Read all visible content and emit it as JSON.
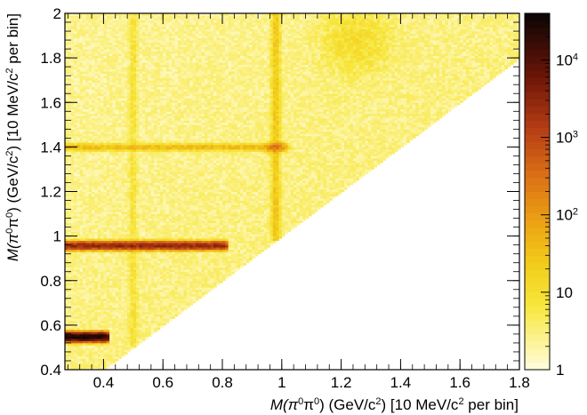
{
  "chart_data": {
    "type": "heatmap",
    "x_axis": {
      "range": [
        0.27,
        1.8
      ],
      "ticks": [
        0.4,
        0.6,
        0.8,
        1,
        1.2,
        1.4,
        1.6,
        1.8
      ],
      "tick_labels": [
        "0.4",
        "0.6",
        "0.8",
        "1",
        "1.2",
        "1.4",
        "1.6",
        "1.8"
      ],
      "label": {
        "base": "M(π",
        "sup1": "0",
        "mid1": "π",
        "sup2": "0",
        "mid2": ") (GeV/c",
        "sup3": "2",
        "mid3": ") [10 MeV/c",
        "sup4": "2",
        "tail": " per bin]"
      }
    },
    "y_axis": {
      "range": [
        0.4,
        2.0
      ],
      "ticks": [
        0.4,
        0.6,
        0.8,
        1,
        1.2,
        1.4,
        1.6,
        1.8,
        2
      ],
      "tick_labels": [
        "0.4",
        "0.6",
        "0.8",
        "1",
        "1.2",
        "1.4",
        "1.6",
        "1.8",
        "2"
      ],
      "label": {
        "base": "M(π",
        "sup1": "0",
        "mid1": "π",
        "sup2": "0",
        "mid2": ") (GeV/c",
        "sup3": "2",
        "mid3": ") [10 MeV/c",
        "sup4": "2",
        "tail": " per bin]"
      }
    },
    "z_axis": {
      "scale": "log",
      "range": [
        1,
        40000
      ],
      "ticks": [
        {
          "value": 1,
          "base": "1",
          "exp": ""
        },
        {
          "value": 10,
          "base": "10",
          "exp": ""
        },
        {
          "value": 100,
          "base": "10",
          "exp": "2"
        },
        {
          "value": 1000,
          "base": "10",
          "exp": "3"
        },
        {
          "value": 10000,
          "base": "10",
          "exp": "4"
        }
      ]
    },
    "kinematic_boundary": "y >= x",
    "features": [
      {
        "kind": "horizontal_band",
        "y": 0.548,
        "x_range": [
          0.27,
          0.42
        ],
        "peak_counts": 30000
      },
      {
        "kind": "horizontal_band",
        "y": 0.958,
        "x_range": [
          0.27,
          0.82
        ],
        "peak_counts": 3000
      },
      {
        "kind": "horizontal_band",
        "y": 1.4,
        "x_range": [
          0.27,
          1.0
        ],
        "peak_counts": 40
      },
      {
        "kind": "vertical_band",
        "x": 0.98,
        "y_range": [
          0.98,
          2.0
        ],
        "peak_counts": 25
      },
      {
        "kind": "vertical_band",
        "x": 0.5,
        "y_range": [
          0.5,
          2.0
        ],
        "peak_counts": 6
      },
      {
        "kind": "spot",
        "x": 0.98,
        "y": 1.4,
        "peak_counts": 250
      },
      {
        "kind": "spot",
        "x": 1.25,
        "y": 1.88,
        "peak_counts": 8
      }
    ]
  }
}
